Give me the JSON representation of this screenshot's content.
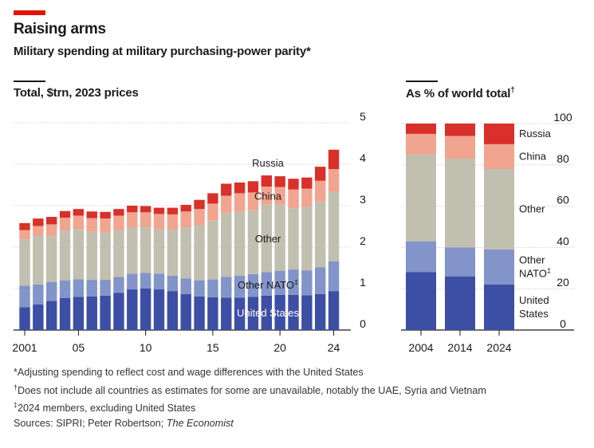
{
  "header": {
    "title": "Raising arms",
    "subtitle": "Military spending at military purchasing-power parity*"
  },
  "left_panel": {
    "title": "Total, $trn, 2023 prices"
  },
  "right_panel": {
    "title": "As % of world total",
    "title_mark": "†"
  },
  "colors": {
    "accent": "#e3120b",
    "united_states": "#3d4ea5",
    "other_nato": "#8294c9",
    "other": "#c1bfaf",
    "china": "#f1a48f",
    "russia": "#d9302a"
  },
  "chart_data": [
    {
      "type": "bar",
      "stacked": true,
      "title": "Total, $trn, 2023 prices",
      "x": [
        2001,
        2002,
        2003,
        2004,
        2005,
        2006,
        2007,
        2008,
        2009,
        2010,
        2011,
        2012,
        2013,
        2014,
        2015,
        2016,
        2017,
        2018,
        2019,
        2020,
        2021,
        2022,
        2023,
        2024
      ],
      "xticks": [
        {
          "year": 2001,
          "label": "2001"
        },
        {
          "year": 2005,
          "label": "05"
        },
        {
          "year": 2010,
          "label": "10"
        },
        {
          "year": 2015,
          "label": "15"
        },
        {
          "year": 2020,
          "label": "20"
        },
        {
          "year": 2024,
          "label": "24"
        }
      ],
      "ylim": [
        0,
        5
      ],
      "yticks": [
        "0",
        "1",
        "2",
        "3",
        "4",
        "5"
      ],
      "series": [
        {
          "name": "United States",
          "color_key": "united_states",
          "values": [
            0.55,
            0.62,
            0.7,
            0.77,
            0.8,
            0.81,
            0.83,
            0.9,
            0.98,
            1.0,
            0.98,
            0.94,
            0.87,
            0.81,
            0.79,
            0.78,
            0.78,
            0.8,
            0.83,
            0.85,
            0.85,
            0.84,
            0.87,
            0.94
          ]
        },
        {
          "name": "Other NATO",
          "color_key": "other_nato",
          "values": [
            0.52,
            0.48,
            0.46,
            0.43,
            0.42,
            0.4,
            0.38,
            0.38,
            0.38,
            0.38,
            0.38,
            0.37,
            0.37,
            0.39,
            0.43,
            0.5,
            0.53,
            0.55,
            0.57,
            0.58,
            0.61,
            0.6,
            0.64,
            0.72
          ]
        },
        {
          "name": "Other",
          "color_key": "other",
          "values": [
            1.12,
            1.17,
            1.12,
            1.2,
            1.22,
            1.16,
            1.14,
            1.13,
            1.12,
            1.1,
            1.07,
            1.11,
            1.23,
            1.33,
            1.42,
            1.54,
            1.54,
            1.54,
            1.63,
            1.6,
            1.48,
            1.54,
            1.59,
            1.67
          ]
        },
        {
          "name": "China",
          "color_key": "china",
          "values": [
            0.22,
            0.24,
            0.27,
            0.31,
            0.32,
            0.33,
            0.34,
            0.35,
            0.36,
            0.36,
            0.37,
            0.37,
            0.39,
            0.39,
            0.41,
            0.42,
            0.45,
            0.43,
            0.43,
            0.42,
            0.45,
            0.43,
            0.5,
            0.55
          ]
        },
        {
          "name": "Russia",
          "color_key": "russia",
          "values": [
            0.17,
            0.18,
            0.18,
            0.16,
            0.16,
            0.16,
            0.16,
            0.16,
            0.16,
            0.15,
            0.15,
            0.16,
            0.16,
            0.22,
            0.25,
            0.29,
            0.26,
            0.27,
            0.27,
            0.26,
            0.26,
            0.27,
            0.34,
            0.47
          ]
        }
      ],
      "labels": [
        "Russia",
        "China",
        "Other",
        "Other NATO",
        "United States"
      ],
      "label_marks": {
        "Other NATO": "‡"
      }
    },
    {
      "type": "bar",
      "stacked": true,
      "title": "As % of world total",
      "categories": [
        "2004",
        "2014",
        "2024"
      ],
      "ylim": [
        0,
        100
      ],
      "yticks": [
        "0",
        "20",
        "40",
        "60",
        "80",
        "100"
      ],
      "series": [
        {
          "name": "United States",
          "color_key": "united_states",
          "values": [
            28,
            26,
            22
          ]
        },
        {
          "name": "Other NATO",
          "color_key": "other_nato",
          "values": [
            15,
            14,
            17
          ]
        },
        {
          "name": "Other",
          "color_key": "other",
          "values": [
            42,
            43,
            39
          ]
        },
        {
          "name": "China",
          "color_key": "china",
          "values": [
            10,
            11,
            12
          ]
        },
        {
          "name": "Russia",
          "color_key": "russia",
          "values": [
            5,
            6,
            10
          ]
        }
      ],
      "labels": [
        "Russia",
        "China",
        "Other",
        "Other NATO",
        "United States"
      ],
      "label_lines": {
        "Other NATO": [
          "Other",
          "NATO"
        ],
        "United States": [
          "United",
          "States"
        ]
      },
      "label_marks": {
        "Other NATO": "‡"
      }
    }
  ],
  "footnotes": {
    "note1": "*Adjusting spending to reflect cost and wage differences with the United States",
    "note2_mark": "†",
    "note2": "Does not include all countries as estimates for some are unavailable, notably the UAE, Syria and Vietnam",
    "note3_mark": "‡",
    "note3": "2024 members, excluding United States",
    "sources_prefix": "Sources: SIPRI; Peter Robertson; ",
    "sources_italic": "The Economist"
  }
}
